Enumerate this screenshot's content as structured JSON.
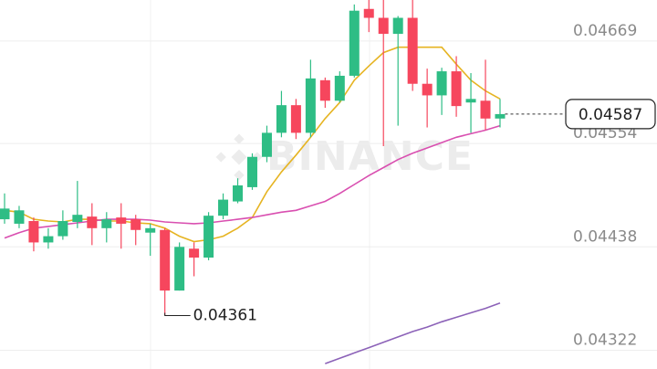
{
  "chart_data": {
    "type": "candlestick",
    "watermark": "BINANCE",
    "low_label": "0.04361",
    "last_price_label": "0.04587",
    "up_color": "#2ebd85",
    "down_color": "#f6465d",
    "ylim": [
      0.04301,
      0.04715
    ],
    "yticks": [
      0.04669,
      0.04554,
      0.04438,
      0.04322
    ],
    "grid": true,
    "open": [
      0.04469,
      0.04464,
      0.04467,
      0.04443,
      0.0445,
      0.04466,
      0.04472,
      0.04459,
      0.04471,
      0.04469,
      0.04454,
      0.04457,
      0.04389,
      0.04436,
      0.04426,
      0.04473,
      0.04489,
      0.04505,
      0.04539,
      0.04566,
      0.04597,
      0.04566,
      0.04625,
      0.04602,
      0.0463,
      0.04705,
      0.04695,
      0.04677,
      0.04695,
      0.04621,
      0.04608,
      0.04635,
      0.046,
      0.04602,
      0.04582
    ],
    "high": [
      0.04498,
      0.04484,
      0.04471,
      0.04459,
      0.04479,
      0.04512,
      0.04487,
      0.04477,
      0.04487,
      0.04474,
      0.04464,
      0.04459,
      0.04443,
      0.04443,
      0.04477,
      0.04498,
      0.04515,
      0.04543,
      0.04574,
      0.04613,
      0.04604,
      0.04648,
      0.04628,
      0.04635,
      0.0471,
      0.04715,
      0.04715,
      0.04697,
      0.04715,
      0.04638,
      0.04639,
      0.04652,
      0.04633,
      0.04648,
      0.04604
    ],
    "low": [
      0.04464,
      0.04459,
      0.04433,
      0.04436,
      0.04446,
      0.04459,
      0.0444,
      0.04443,
      0.04436,
      0.0444,
      0.04428,
      0.04361,
      0.04389,
      0.04405,
      0.04423,
      0.04469,
      0.04487,
      0.04502,
      0.04533,
      0.04561,
      0.04559,
      0.04561,
      0.04594,
      0.046,
      0.04628,
      0.04679,
      0.04551,
      0.04574,
      0.04613,
      0.04572,
      0.04586,
      0.04584,
      0.04566,
      0.04569,
      0.04572
    ],
    "close": [
      0.04481,
      0.04479,
      0.04443,
      0.0445,
      0.04467,
      0.04474,
      0.04459,
      0.04469,
      0.04464,
      0.04457,
      0.04459,
      0.04389,
      0.04438,
      0.04426,
      0.04473,
      0.04491,
      0.04507,
      0.04539,
      0.04566,
      0.04597,
      0.04566,
      0.04627,
      0.04602,
      0.0463,
      0.04703,
      0.04695,
      0.04677,
      0.04695,
      0.04621,
      0.04608,
      0.04635,
      0.04596,
      0.04604,
      0.04582,
      0.04587
    ],
    "series": [
      {
        "color": "#e6b422",
        "values": [
          0.04479,
          0.04477,
          0.04469,
          0.04467,
          0.04466,
          0.04469,
          0.04469,
          0.04467,
          0.04467,
          0.04465,
          0.04464,
          0.04459,
          0.0445,
          0.04444,
          0.04446,
          0.0445,
          0.04459,
          0.04471,
          0.045,
          0.04522,
          0.04541,
          0.04561,
          0.04582,
          0.046,
          0.04625,
          0.04641,
          0.04656,
          0.04662,
          0.04662,
          0.04662,
          0.04662,
          0.04643,
          0.04625,
          0.04613,
          0.04604
        ]
      },
      {
        "color": "#d94fb0",
        "values": [
          0.04448,
          0.04454,
          0.04459,
          0.04461,
          0.04463,
          0.04465,
          0.04467,
          0.04469,
          0.04469,
          0.04469,
          0.04468,
          0.04466,
          0.04465,
          0.04464,
          0.04465,
          0.04467,
          0.04469,
          0.04471,
          0.04474,
          0.04477,
          0.04479,
          0.04484,
          0.04489,
          0.04498,
          0.04508,
          0.04518,
          0.04527,
          0.04536,
          0.04543,
          0.04549,
          0.04555,
          0.04561,
          0.04565,
          0.04569,
          0.04574
        ]
      },
      {
        "color": "#8c62b8",
        "values": [
          null,
          null,
          null,
          null,
          null,
          null,
          null,
          null,
          null,
          null,
          null,
          null,
          null,
          null,
          null,
          null,
          null,
          null,
          null,
          null,
          null,
          null,
          0.04307,
          0.04313,
          0.04319,
          0.04325,
          0.04331,
          0.04337,
          0.04343,
          0.04348,
          0.04354,
          0.04359,
          0.04364,
          0.04369,
          0.04375
        ]
      }
    ]
  }
}
